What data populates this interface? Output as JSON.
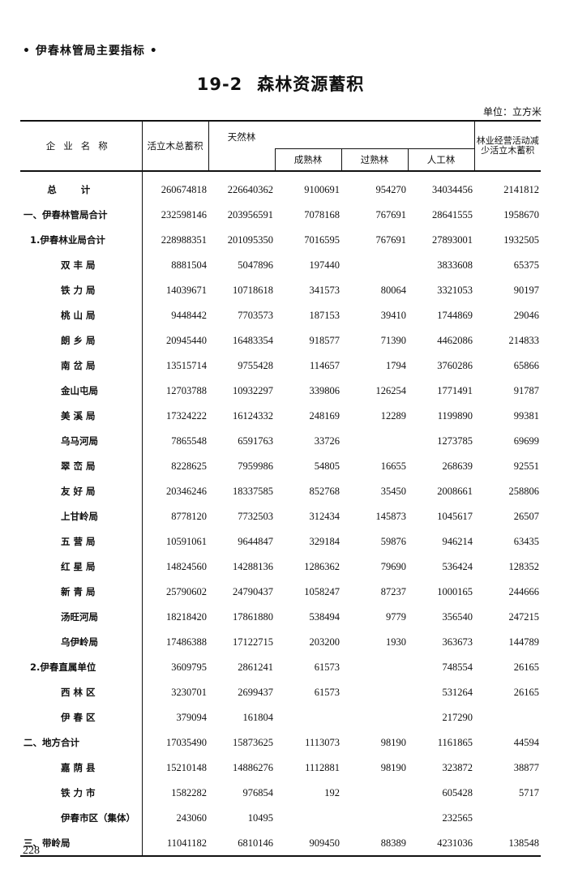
{
  "running_head": "• 伊春林管局主要指标 •",
  "title": {
    "number": "19-2",
    "text": "森林资源蓄积"
  },
  "unit": "单位：立方米",
  "headers": {
    "name": "企业名称",
    "total": "活立木总蓄积",
    "natural": "天然林",
    "mature": "成熟林",
    "overmature": "过熟林",
    "planted": "人工林",
    "reduced": "林业经营活动减少活立木蓄积"
  },
  "rows": [
    {
      "name": "总计",
      "level": "total",
      "v": [
        "260674818",
        "226640362",
        "9100691",
        "954270",
        "34034456",
        "2141812"
      ]
    },
    {
      "name": "一、伊春林管局合计",
      "level": "0",
      "v": [
        "232598146",
        "203956591",
        "7078168",
        "767691",
        "28641555",
        "1958670"
      ]
    },
    {
      "name": "1.伊春林业局合计",
      "level": "1",
      "v": [
        "228988351",
        "201095350",
        "7016595",
        "767691",
        "27893001",
        "1932505"
      ]
    },
    {
      "name": "双 丰 局",
      "level": "2",
      "v": [
        "8881504",
        "5047896",
        "197440",
        "",
        "3833608",
        "65375"
      ]
    },
    {
      "name": "铁 力 局",
      "level": "2",
      "v": [
        "14039671",
        "10718618",
        "341573",
        "80064",
        "3321053",
        "90197"
      ]
    },
    {
      "name": "桃 山 局",
      "level": "2",
      "v": [
        "9448442",
        "7703573",
        "187153",
        "39410",
        "1744869",
        "29046"
      ]
    },
    {
      "name": "朗 乡 局",
      "level": "2",
      "v": [
        "20945440",
        "16483354",
        "918577",
        "71390",
        "4462086",
        "214833"
      ]
    },
    {
      "name": "南 岔 局",
      "level": "2",
      "v": [
        "13515714",
        "9755428",
        "114657",
        "1794",
        "3760286",
        "65866"
      ]
    },
    {
      "name": "金山屯局",
      "level": "2",
      "v": [
        "12703788",
        "10932297",
        "339806",
        "126254",
        "1771491",
        "91787"
      ]
    },
    {
      "name": "美 溪 局",
      "level": "2",
      "v": [
        "17324222",
        "16124332",
        "248169",
        "12289",
        "1199890",
        "99381"
      ]
    },
    {
      "name": "乌马河局",
      "level": "2",
      "v": [
        "7865548",
        "6591763",
        "33726",
        "",
        "1273785",
        "69699"
      ]
    },
    {
      "name": "翠 峦 局",
      "level": "2",
      "v": [
        "8228625",
        "7959986",
        "54805",
        "16655",
        "268639",
        "92551"
      ]
    },
    {
      "name": "友 好 局",
      "level": "2",
      "v": [
        "20346246",
        "18337585",
        "852768",
        "35450",
        "2008661",
        "258806"
      ]
    },
    {
      "name": "上甘岭局",
      "level": "2",
      "v": [
        "8778120",
        "7732503",
        "312434",
        "145873",
        "1045617",
        "26507"
      ]
    },
    {
      "name": "五 营 局",
      "level": "2",
      "v": [
        "10591061",
        "9644847",
        "329184",
        "59876",
        "946214",
        "63435"
      ]
    },
    {
      "name": "红 星 局",
      "level": "2",
      "v": [
        "14824560",
        "14288136",
        "1286362",
        "79690",
        "536424",
        "128352"
      ]
    },
    {
      "name": "新 青 局",
      "level": "2",
      "v": [
        "25790602",
        "24790437",
        "1058247",
        "87237",
        "1000165",
        "244666"
      ]
    },
    {
      "name": "汤旺河局",
      "level": "2",
      "v": [
        "18218420",
        "17861880",
        "538494",
        "9779",
        "356540",
        "247215"
      ]
    },
    {
      "name": "乌伊岭局",
      "level": "2",
      "v": [
        "17486388",
        "17122715",
        "203200",
        "1930",
        "363673",
        "144789"
      ]
    },
    {
      "name": "2.伊春直属单位",
      "level": "1",
      "v": [
        "3609795",
        "2861241",
        "61573",
        "",
        "748554",
        "26165"
      ]
    },
    {
      "name": "西 林 区",
      "level": "2",
      "v": [
        "3230701",
        "2699437",
        "61573",
        "",
        "531264",
        "26165"
      ]
    },
    {
      "name": "伊 春 区",
      "level": "2",
      "v": [
        "379094",
        "161804",
        "",
        "",
        "217290",
        ""
      ]
    },
    {
      "name": "二、地方合计",
      "level": "0",
      "v": [
        "17035490",
        "15873625",
        "1113073",
        "98190",
        "1161865",
        "44594"
      ]
    },
    {
      "name": "嘉 荫 县",
      "level": "2",
      "v": [
        "15210148",
        "14886276",
        "1112881",
        "98190",
        "323872",
        "38877"
      ]
    },
    {
      "name": "铁 力 市",
      "level": "2",
      "v": [
        "1582282",
        "976854",
        "192",
        "",
        "605428",
        "5717"
      ]
    },
    {
      "name": "伊春市区（集体）",
      "level": "2",
      "v": [
        "243060",
        "10495",
        "",
        "",
        "232565",
        ""
      ]
    },
    {
      "name": "三、带岭局",
      "level": "0",
      "v": [
        "11041182",
        "6810146",
        "909450",
        "88389",
        "4231036",
        "138548"
      ]
    }
  ],
  "page_number": "228"
}
